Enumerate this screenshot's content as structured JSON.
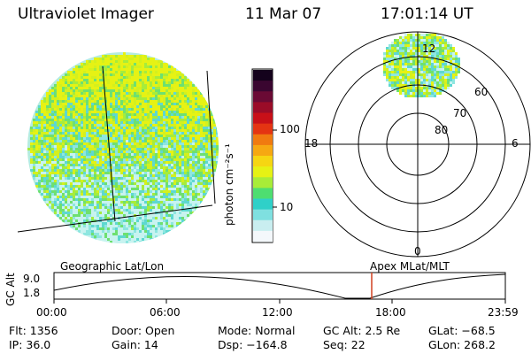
{
  "header": {
    "instrument": "Ultraviolet Imager",
    "date": "11 Mar 07",
    "time": "17:01:14 UT"
  },
  "colorbar": {
    "unit_label": "photon cm⁻²s⁻¹",
    "ticks": [
      "100",
      "10"
    ],
    "colors": [
      "#f4f8fb",
      "#c9eef0",
      "#7fe0e0",
      "#2fd0c8",
      "#4ede70",
      "#a8ec38",
      "#e6f214",
      "#f6d612",
      "#f6a812",
      "#f07a10",
      "#e43412",
      "#c81018",
      "#9a0c28",
      "#6a0a34",
      "#3a0630",
      "#14021c"
    ]
  },
  "geographic_view": {
    "label": "Geographic Lat/Lon",
    "pixel_colors": [
      "#c8f3f0",
      "#8ee6e0",
      "#5ed8d0",
      "#6ee070",
      "#a6ec3c",
      "#d4f01e",
      "#e6f214"
    ]
  },
  "polar_view": {
    "label": "Apex MLat/MLT",
    "mlt_labels": {
      "top": "12",
      "left": "18",
      "right": "6",
      "bottom": "0"
    },
    "mlat_labels": [
      "60",
      "70",
      "80"
    ]
  },
  "altitude_plot": {
    "axis_label": "GC Alt",
    "y_ticks": [
      "9.0",
      "1.8"
    ],
    "time_ticks": [
      "00:00",
      "06:00",
      "12:00",
      "18:00",
      "23:59"
    ],
    "marker_color": "#d04020"
  },
  "status": {
    "flt": "Flt: 1356",
    "ip": "IP: 36.0",
    "door": "Door: Open",
    "gain": "Gain: 14",
    "mode": "Mode: Normal",
    "dsp": "Dsp: −164.8",
    "gc_alt": "GC Alt: 2.5 Re",
    "seq": "Seq: 22",
    "glat": "GLat: −68.5",
    "glon": "GLon: 268.2"
  }
}
